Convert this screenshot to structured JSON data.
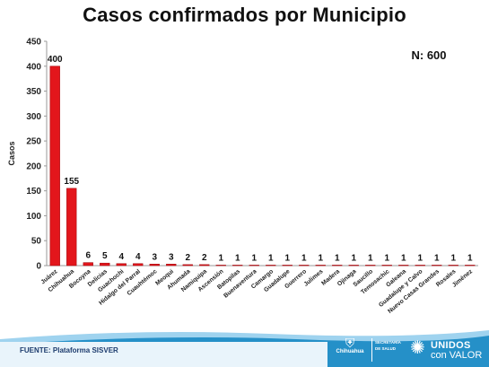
{
  "chart_data": {
    "type": "bar",
    "title": "Casos confirmados por Municipio",
    "ylabel": "Casos",
    "xlabel": "",
    "annotation": "N: 600",
    "ylim": [
      0,
      450
    ],
    "yticks": [
      0,
      50,
      100,
      150,
      200,
      250,
      300,
      350,
      400,
      450
    ],
    "grid": false,
    "bar_color": "#e3161c",
    "categories": [
      "Juárez",
      "Chihuahua",
      "Bocoyna",
      "Delicias",
      "Guachochi",
      "Hidalgo del Parral",
      "Cuauhtémoc",
      "Meoqui",
      "Ahumada",
      "Namiquipa",
      "Ascensión",
      "Batopilas",
      "Buenaventura",
      "Camargo",
      "Guadalupe",
      "Guerrero",
      "Julimes",
      "Madera",
      "Ojinaga",
      "Saucillo",
      "Temosachic",
      "Galeana",
      "Guadalupe y Calvo",
      "Nuevo Casas Grandes",
      "Rosales",
      "Jiménez"
    ],
    "values": [
      400,
      155,
      6,
      5,
      4,
      4,
      3,
      3,
      2,
      2,
      1,
      1,
      1,
      1,
      1,
      1,
      1,
      1,
      1,
      1,
      1,
      1,
      1,
      1,
      1,
      1
    ]
  },
  "footer": {
    "source": "FUENTE: Plataforma SISVER",
    "gov_name": "Chihuahua",
    "dept_line1": "SECRETARÍA",
    "dept_line2": "DE SALUD",
    "brand_line1": "UNIDOS",
    "brand_line2": "con VALOR",
    "band_color": "#2590c8",
    "band_color_light": "#9fd3ef"
  }
}
